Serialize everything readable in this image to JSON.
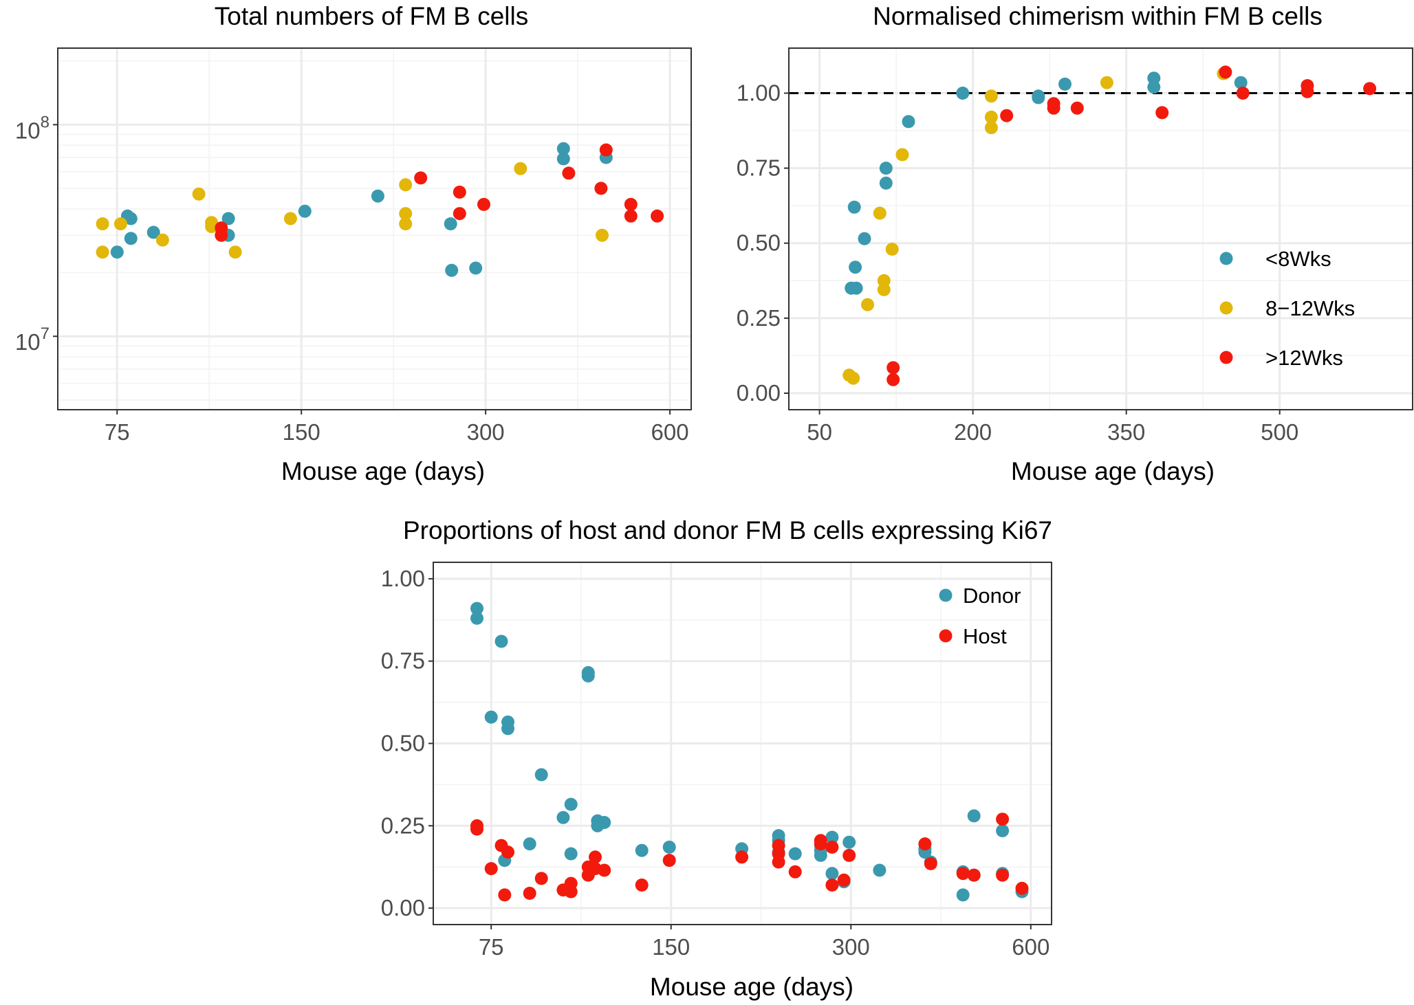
{
  "colors": {
    "teal": "#3A99AE",
    "gold": "#E2B70A",
    "red": "#F21A0D",
    "grid_major": "#EBEBEB",
    "grid_minor": "#F2F2F2",
    "panel_border": "#333333"
  },
  "chart_data": [
    {
      "type": "scatter",
      "title": "Total numbers of  FM B cells",
      "xlabel": "Mouse age (days)",
      "ylabel": "",
      "x_scale": "log",
      "y_scale": "log",
      "xlim": [
        60,
        650
      ],
      "ylim": [
        4500000,
        230000000
      ],
      "x_ticks": [
        75,
        150,
        300,
        600
      ],
      "x_tick_labels": [
        "75",
        "150",
        "300",
        "600"
      ],
      "y_ticks": [
        10000000,
        100000000
      ],
      "y_tick_labels": [
        {
          "base": "10",
          "exp": "7"
        },
        {
          "base": "10",
          "exp": "8"
        }
      ],
      "grid": true,
      "series": [
        {
          "color_key": "teal",
          "points": [
            [
              75,
              25000000
            ],
            [
              78,
              37000000
            ],
            [
              79,
              36000000
            ],
            [
              79,
              29000000
            ],
            [
              86,
              31000000
            ],
            [
              114,
              36000000
            ],
            [
              114,
              30000000
            ],
            [
              152,
              39000000
            ],
            [
              200,
              46000000
            ],
            [
              263,
              34000000
            ],
            [
              264,
              20500000
            ],
            [
              289,
              21000000
            ],
            [
              402,
              77000000
            ],
            [
              402,
              69000000
            ],
            [
              472,
              70000000
            ]
          ]
        },
        {
          "color_key": "gold",
          "points": [
            [
              71,
              34000000
            ],
            [
              71,
              25000000
            ],
            [
              76,
              34000000
            ],
            [
              89,
              28500000
            ],
            [
              102,
              47000000
            ],
            [
              107,
              34500000
            ],
            [
              107,
              33000000
            ],
            [
              117,
              25000000
            ],
            [
              144,
              36000000
            ],
            [
              222,
              52000000
            ],
            [
              222,
              38000000
            ],
            [
              222,
              34000000
            ],
            [
              342,
              62000000
            ],
            [
              465,
              30000000
            ]
          ]
        },
        {
          "color_key": "red",
          "points": [
            [
              111,
              32500000
            ],
            [
              111,
              30000000
            ],
            [
              235,
              56000000
            ],
            [
              272,
              48000000
            ],
            [
              272,
              38000000
            ],
            [
              298,
              42000000
            ],
            [
              410,
              59000000
            ],
            [
              472,
              76000000
            ],
            [
              463,
              50000000
            ],
            [
              518,
              42000000
            ],
            [
              518,
              37000000
            ],
            [
              572,
              37000000
            ]
          ]
        }
      ]
    },
    {
      "type": "scatter",
      "title": "Normalised chimerism within  FM B cells",
      "xlabel": "Mouse age (days)",
      "ylabel": "",
      "xlim": [
        20,
        630
      ],
      "ylim": [
        -0.055,
        1.15
      ],
      "x_ticks": [
        50,
        200,
        350,
        500
      ],
      "x_tick_labels": [
        "50",
        "200",
        "350",
        "500"
      ],
      "y_ticks": [
        0,
        0.25,
        0.5,
        0.75,
        1
      ],
      "y_tick_labels": [
        "0.00",
        "0.25",
        "0.50",
        "0.75",
        "1.00"
      ],
      "reference_line": {
        "y": 1.0,
        "style": "dashed"
      },
      "grid": true,
      "legend": {
        "position": "right",
        "entries": [
          {
            "label": "<8Wks",
            "color_key": "teal"
          },
          {
            "label": "8−12Wks",
            "color_key": "gold"
          },
          {
            "label": ">12Wks",
            "color_key": "red"
          }
        ]
      },
      "series": [
        {
          "name": "<8Wks",
          "color_key": "teal",
          "points": [
            [
              84,
              0.62
            ],
            [
              94,
              0.515
            ],
            [
              85,
              0.42
            ],
            [
              81,
              0.35
            ],
            [
              86,
              0.35
            ],
            [
              115,
              0.75
            ],
            [
              115,
              0.7
            ],
            [
              137,
              0.905
            ],
            [
              190,
              1.0
            ],
            [
              264,
              0.99
            ],
            [
              264,
              0.985
            ],
            [
              290,
              1.03
            ],
            [
              377,
              1.05
            ],
            [
              377,
              1.02
            ],
            [
              462,
              1.035
            ]
          ]
        },
        {
          "name": "8−12Wks",
          "color_key": "gold",
          "points": [
            [
              79,
              0.06
            ],
            [
              83,
              0.05
            ],
            [
              97,
              0.295
            ],
            [
              109,
              0.6
            ],
            [
              113,
              0.375
            ],
            [
              113,
              0.345
            ],
            [
              121,
              0.48
            ],
            [
              131,
              0.795
            ],
            [
              218,
              0.99
            ],
            [
              218,
              0.92
            ],
            [
              218,
              0.885
            ],
            [
              331,
              1.035
            ],
            [
              445,
              1.065
            ]
          ]
        },
        {
          "name": ">12Wks",
          "color_key": "red",
          "points": [
            [
              122,
              0.085
            ],
            [
              122,
              0.045
            ],
            [
              233,
              0.925
            ],
            [
              279,
              0.965
            ],
            [
              279,
              0.95
            ],
            [
              302,
              0.95
            ],
            [
              385,
              0.935
            ],
            [
              447,
              1.07
            ],
            [
              464,
              1.0
            ],
            [
              527,
              1.025
            ],
            [
              527,
              1.005
            ],
            [
              588,
              1.015
            ]
          ]
        }
      ]
    },
    {
      "type": "scatter",
      "title": "Proportions of host and donor  FM B cells expressing Ki67",
      "xlabel": "Mouse age (days)",
      "ylabel": "",
      "x_scale": "log",
      "xlim": [
        60,
        650
      ],
      "ylim": [
        -0.05,
        1.05
      ],
      "x_ticks": [
        75,
        150,
        300,
        600
      ],
      "x_tick_labels": [
        "75",
        "150",
        "300",
        "600"
      ],
      "y_ticks": [
        0,
        0.25,
        0.5,
        0.75,
        1
      ],
      "y_tick_labels": [
        "0.00",
        "0.25",
        "0.50",
        "0.75",
        "1.00"
      ],
      "grid": true,
      "legend": {
        "position": "top-right",
        "entries": [
          {
            "label": "Donor",
            "color_key": "teal"
          },
          {
            "label": "Host",
            "color_key": "red"
          }
        ]
      },
      "series": [
        {
          "name": "Donor",
          "color_key": "teal",
          "points": [
            [
              71,
              0.91
            ],
            [
              71,
              0.88
            ],
            [
              78,
              0.81
            ],
            [
              75,
              0.58
            ],
            [
              80,
              0.565
            ],
            [
              80,
              0.545
            ],
            [
              79,
              0.145
            ],
            [
              91,
              0.405
            ],
            [
              87,
              0.195
            ],
            [
              99,
              0.275
            ],
            [
              102,
              0.315
            ],
            [
              102,
              0.165
            ],
            [
              109,
              0.715
            ],
            [
              109,
              0.705
            ],
            [
              113,
              0.265
            ],
            [
              113,
              0.25
            ],
            [
              116,
              0.26
            ],
            [
              134,
              0.175
            ],
            [
              149,
              0.185
            ],
            [
              197,
              0.18
            ],
            [
              227,
              0.22
            ],
            [
              227,
              0.205
            ],
            [
              227,
              0.17
            ],
            [
              242,
              0.165
            ],
            [
              267,
              0.19
            ],
            [
              267,
              0.175
            ],
            [
              267,
              0.16
            ],
            [
              279,
              0.215
            ],
            [
              279,
              0.105
            ],
            [
              292,
              0.08
            ],
            [
              298,
              0.2
            ],
            [
              335,
              0.115
            ],
            [
              399,
              0.18
            ],
            [
              399,
              0.17
            ],
            [
              408,
              0.14
            ],
            [
              462,
              0.11
            ],
            [
              462,
              0.04
            ],
            [
              482,
              0.28
            ],
            [
              482,
              0.1
            ],
            [
              538,
              0.235
            ],
            [
              538,
              0.105
            ],
            [
              580,
              0.05
            ]
          ]
        },
        {
          "name": "Host",
          "color_key": "red",
          "points": [
            [
              71,
              0.25
            ],
            [
              71,
              0.24
            ],
            [
              75,
              0.12
            ],
            [
              78,
              0.19
            ],
            [
              80,
              0.17
            ],
            [
              79,
              0.04
            ],
            [
              87,
              0.045
            ],
            [
              91,
              0.09
            ],
            [
              99,
              0.055
            ],
            [
              102,
              0.075
            ],
            [
              102,
              0.05
            ],
            [
              109,
              0.125
            ],
            [
              109,
              0.1
            ],
            [
              112,
              0.155
            ],
            [
              112,
              0.12
            ],
            [
              116,
              0.115
            ],
            [
              134,
              0.07
            ],
            [
              149,
              0.145
            ],
            [
              197,
              0.155
            ],
            [
              227,
              0.19
            ],
            [
              227,
              0.165
            ],
            [
              227,
              0.14
            ],
            [
              242,
              0.11
            ],
            [
              267,
              0.205
            ],
            [
              267,
              0.195
            ],
            [
              279,
              0.185
            ],
            [
              279,
              0.07
            ],
            [
              292,
              0.085
            ],
            [
              298,
              0.16
            ],
            [
              399,
              0.195
            ],
            [
              408,
              0.135
            ],
            [
              462,
              0.105
            ],
            [
              482,
              0.1
            ],
            [
              538,
              0.27
            ],
            [
              538,
              0.1
            ],
            [
              580,
              0.06
            ]
          ]
        }
      ]
    }
  ]
}
